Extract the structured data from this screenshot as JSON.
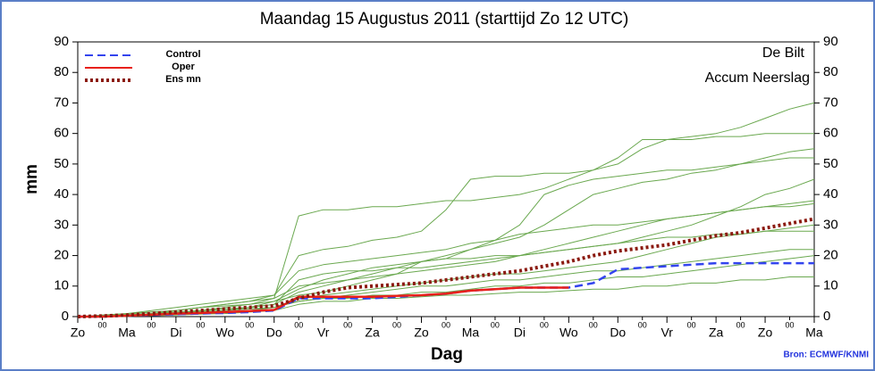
{
  "chart_data": {
    "type": "line",
    "title": "Maandag 15 Augustus 2011 (starttijd Zo 12 UTC)",
    "annotations": [
      "De Bilt",
      "Accum Neerslag"
    ],
    "source": "Bron: ECMWF/KNMI",
    "x_label": "Dag",
    "y_label": "mm",
    "x": [
      0,
      0.5,
      1,
      1.5,
      2,
      2.5,
      3,
      3.5,
      4,
      4.5,
      5,
      5.5,
      6,
      6.5,
      7,
      7.5,
      8,
      8.5,
      9,
      9.5,
      10,
      10.5,
      11,
      11.5,
      12,
      12.5,
      13,
      13.5,
      14,
      14.5,
      15
    ],
    "xlim": [
      0,
      15
    ],
    "xticks": [
      {
        "value": 0,
        "label": "Zo"
      },
      {
        "value": 0.5,
        "label": "00"
      },
      {
        "value": 1,
        "label": "Ma"
      },
      {
        "value": 1.5,
        "label": "00"
      },
      {
        "value": 2,
        "label": "Di"
      },
      {
        "value": 2.5,
        "label": "00"
      },
      {
        "value": 3,
        "label": "Wo"
      },
      {
        "value": 3.5,
        "label": "00"
      },
      {
        "value": 4,
        "label": "Do"
      },
      {
        "value": 4.5,
        "label": "00"
      },
      {
        "value": 5,
        "label": "Vr"
      },
      {
        "value": 5.5,
        "label": "00"
      },
      {
        "value": 6,
        "label": "Za"
      },
      {
        "value": 6.5,
        "label": "00"
      },
      {
        "value": 7,
        "label": "Zo"
      },
      {
        "value": 7.5,
        "label": "00"
      },
      {
        "value": 8,
        "label": "Ma"
      },
      {
        "value": 8.5,
        "label": "00"
      },
      {
        "value": 9,
        "label": "Di"
      },
      {
        "value": 9.5,
        "label": "00"
      },
      {
        "value": 10,
        "label": "Wo"
      },
      {
        "value": 10.5,
        "label": "00"
      },
      {
        "value": 11,
        "label": "Do"
      },
      {
        "value": 11.5,
        "label": "00"
      },
      {
        "value": 12,
        "label": "Vr"
      },
      {
        "value": 12.5,
        "label": "00"
      },
      {
        "value": 13,
        "label": "Za"
      },
      {
        "value": 13.5,
        "label": "00"
      },
      {
        "value": 14,
        "label": "Zo"
      },
      {
        "value": 14.5,
        "label": "00"
      },
      {
        "value": 15,
        "label": "Ma"
      }
    ],
    "ylim": [
      0,
      90
    ],
    "yticks": [
      0,
      10,
      20,
      30,
      40,
      50,
      60,
      70,
      80,
      90
    ],
    "y2lim": [
      0,
      90
    ],
    "y2ticks": [
      0,
      10,
      20,
      30,
      40,
      50,
      60,
      70,
      80,
      90
    ],
    "legend": "top-left",
    "member_color": "#6aa84f",
    "ensemble_members": [
      [
        0,
        0.5,
        1,
        2,
        3,
        4,
        5,
        6,
        7,
        20,
        22,
        23,
        25,
        26,
        28,
        35,
        45,
        46,
        46,
        47,
        47,
        48,
        50,
        55,
        58,
        58,
        59,
        59,
        60,
        60,
        60
      ],
      [
        0,
        0,
        0.5,
        1,
        1.5,
        2,
        3,
        4,
        6,
        33,
        35,
        35,
        36,
        36,
        37,
        38,
        38,
        39,
        40,
        42,
        45,
        48,
        52,
        58,
        58,
        59,
        60,
        62,
        65,
        68,
        70
      ],
      [
        0,
        0,
        0.3,
        0.5,
        1,
        1.5,
        2,
        3,
        4,
        8,
        10,
        12,
        13,
        14,
        15,
        16,
        17,
        18,
        20,
        22,
        24,
        26,
        28,
        30,
        32,
        33,
        34,
        35,
        36,
        37,
        38
      ],
      [
        0,
        0,
        0.2,
        0.4,
        0.6,
        1,
        1.5,
        2,
        3,
        5,
        6,
        7,
        8,
        9,
        10,
        10,
        11,
        12,
        12,
        13,
        14,
        15,
        15,
        16,
        17,
        18,
        19,
        20,
        21,
        22,
        22
      ],
      [
        0,
        0.3,
        0.8,
        1.5,
        2,
        3,
        4,
        5,
        6,
        10,
        11,
        12,
        14,
        16,
        18,
        19,
        22,
        24,
        26,
        30,
        35,
        40,
        42,
        44,
        45,
        47,
        48,
        50,
        52,
        54,
        55
      ],
      [
        0,
        0,
        0.1,
        0.3,
        0.5,
        0.8,
        1,
        1.5,
        2,
        4,
        5,
        5,
        6,
        6,
        6.5,
        7,
        7,
        7.5,
        8,
        8,
        8.5,
        9,
        9,
        10,
        10,
        11,
        11,
        12,
        12,
        13,
        13
      ],
      [
        0,
        0.2,
        0.5,
        1,
        2,
        3,
        4,
        5,
        7,
        15,
        17,
        18,
        19,
        20,
        21,
        22,
        24,
        25,
        27,
        28,
        29,
        30,
        30,
        31,
        32,
        33,
        34,
        35,
        36,
        36,
        37
      ],
      [
        0,
        0,
        0.5,
        1,
        1.5,
        2,
        2.5,
        3,
        5,
        7,
        8,
        10,
        12,
        14,
        18,
        20,
        22,
        25,
        30,
        40,
        43,
        45,
        46,
        47,
        48,
        48,
        49,
        50,
        51,
        52,
        52
      ],
      [
        0,
        0,
        0.2,
        0.5,
        1,
        1.5,
        2,
        2.5,
        3,
        6,
        7,
        8,
        9,
        10,
        11,
        12,
        13,
        14,
        14,
        15,
        16,
        17,
        18,
        20,
        22,
        24,
        26,
        27,
        28,
        29,
        30
      ],
      [
        0,
        0.5,
        1,
        1.5,
        2,
        3,
        3.5,
        4,
        5,
        9,
        12,
        14,
        16,
        17,
        18,
        19,
        19,
        20,
        20,
        21,
        22,
        23,
        24,
        26,
        28,
        30,
        33,
        36,
        40,
        42,
        45
      ],
      [
        0,
        0,
        0.3,
        0.8,
        1.2,
        1.8,
        2.5,
        3,
        4,
        12,
        14,
        15,
        15,
        16,
        16,
        17,
        18,
        19,
        20,
        21,
        22,
        23,
        24,
        25,
        26,
        26,
        27,
        27,
        28,
        28,
        28
      ],
      [
        0,
        0.2,
        0.4,
        0.8,
        1,
        1.5,
        2,
        2.5,
        3,
        5,
        6,
        6,
        7,
        7,
        8,
        8,
        9,
        10,
        10,
        11,
        11,
        12,
        13,
        13,
        14,
        15,
        16,
        17,
        18,
        19,
        20
      ]
    ],
    "series": [
      {
        "name": "Control",
        "color": "#3344ee",
        "linestyle": "dashed",
        "values": [
          0,
          0,
          0.3,
          0.5,
          0.8,
          1,
          1.2,
          1.5,
          2,
          6,
          6,
          6,
          6,
          6.5,
          7,
          7.5,
          8.5,
          9,
          9.5,
          9.5,
          9.5,
          11,
          15.5,
          16,
          16.5,
          17,
          17.5,
          17.5,
          17.5,
          17.5,
          17.5
        ]
      },
      {
        "name": "Oper",
        "color": "#e8201a",
        "linestyle": "solid",
        "values": [
          0,
          0,
          0.3,
          0.6,
          1,
          1.2,
          1.5,
          1.8,
          2.2,
          6.5,
          6.5,
          6.5,
          6.5,
          6.8,
          7,
          7.5,
          8.5,
          9,
          9.5,
          9.5,
          9.5,
          null,
          null,
          null,
          null,
          null,
          null,
          null,
          null,
          null,
          null
        ]
      },
      {
        "name": "Ens mn",
        "color": "#8b1a10",
        "linestyle": "dotted",
        "values": [
          0,
          0.2,
          0.5,
          1,
          1.5,
          2,
          2.5,
          3,
          3.5,
          6,
          8,
          9.5,
          10,
          10.5,
          11,
          12,
          13,
          14,
          15,
          16.5,
          18,
          20,
          21.5,
          22.5,
          23.5,
          25,
          26.5,
          27.5,
          29,
          30.5,
          32
        ]
      }
    ]
  }
}
